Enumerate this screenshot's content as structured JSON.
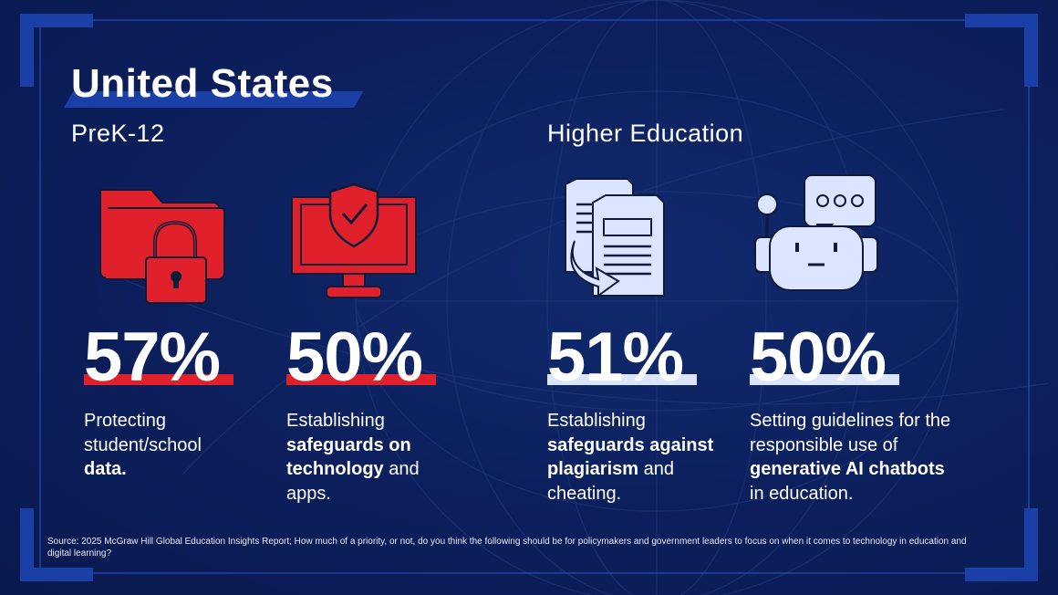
{
  "title": "United States",
  "sections": {
    "prek": "PreK-12",
    "higher": "Higher Education"
  },
  "colors": {
    "background": "#0c1f5c",
    "frame": "#1a3fa6",
    "red": "#e0202a",
    "light": "#dbe5ff"
  },
  "stats": [
    {
      "value": "57%",
      "icon": "locked-folder-icon",
      "desc": {
        "a": "Protecting student/school ",
        "b": "data.",
        "c": ""
      }
    },
    {
      "value": "50%",
      "icon": "shielded-monitor-icon",
      "desc": {
        "a": "Establishing ",
        "b": "safeguards on technology",
        "c": " and apps."
      }
    },
    {
      "value": "51%",
      "icon": "copied-documents-icon",
      "desc": {
        "a": "Establishing ",
        "b": "safeguards against plagiarism",
        "c": " and cheating."
      }
    },
    {
      "value": "50%",
      "icon": "chatbot-icon",
      "desc": {
        "a": "Setting guidelines for the responsible use of ",
        "b": "generative AI chatbots",
        "c": " in education."
      }
    }
  ],
  "source": "Source: 2025 McGraw Hill Global Education Insights Report; How much of a priority, or not, do you think the following should be for policymakers and government leaders to focus on when it comes to technology in education and digital learning?"
}
